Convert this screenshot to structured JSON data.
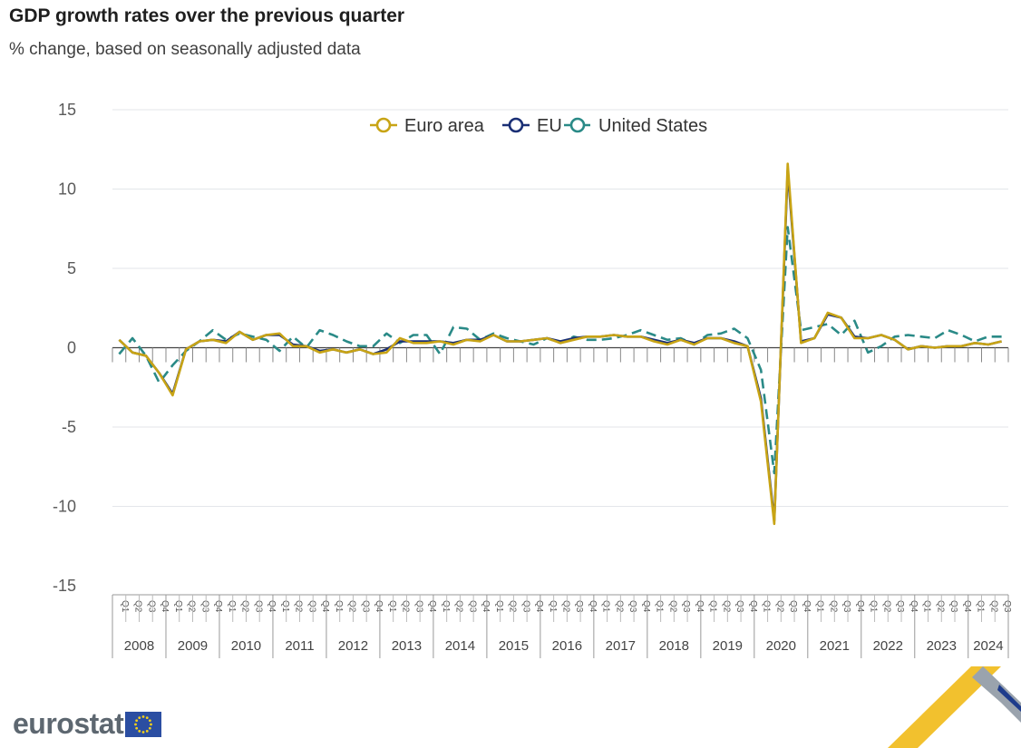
{
  "chart_data": {
    "type": "line",
    "title": "GDP growth rates over the previous quarter",
    "subtitle": "% change, based on seasonally adjusted data",
    "xlabel": "",
    "ylabel": "",
    "ylim": [
      -15,
      15
    ],
    "yticks": [
      15,
      10,
      5,
      0,
      -5,
      -10,
      -15
    ],
    "grid": true,
    "legend_position": "top-center",
    "quarter_labels": [
      "Q1",
      "Q2",
      "Q3",
      "Q4"
    ],
    "years": [
      "2008",
      "2009",
      "2010",
      "2011",
      "2012",
      "2013",
      "2014",
      "2015",
      "2016",
      "2017",
      "2018",
      "2019",
      "2020",
      "2021",
      "2022",
      "2023",
      "2024"
    ],
    "quarters_per_year": [
      4,
      4,
      4,
      4,
      4,
      4,
      4,
      4,
      4,
      4,
      4,
      4,
      4,
      4,
      4,
      4,
      3
    ],
    "series": [
      {
        "name": "Euro area",
        "color": "#c8a415",
        "dash": "solid",
        "values": [
          0.5,
          -0.3,
          -0.5,
          -1.6,
          -3.0,
          -0.1,
          0.4,
          0.5,
          0.3,
          1.0,
          0.5,
          0.8,
          0.9,
          0.1,
          0.1,
          -0.3,
          -0.1,
          -0.3,
          -0.1,
          -0.4,
          -0.3,
          0.6,
          0.3,
          0.3,
          0.4,
          0.2,
          0.5,
          0.4,
          0.8,
          0.4,
          0.4,
          0.5,
          0.6,
          0.3,
          0.5,
          0.7,
          0.7,
          0.8,
          0.7,
          0.7,
          0.4,
          0.2,
          0.5,
          0.2,
          0.6,
          0.6,
          0.3,
          0.1,
          -3.4,
          -11.1,
          11.6,
          0.3,
          0.6,
          2.2,
          1.9,
          0.6,
          0.6,
          0.8,
          0.5,
          -0.1,
          0.1,
          0.0,
          0.1,
          0.1,
          0.3,
          0.2,
          0.4
        ]
      },
      {
        "name": "EU",
        "color": "#1a2f75",
        "dash": "solid",
        "values": [
          0.5,
          -0.3,
          -0.5,
          -1.6,
          -2.9,
          -0.1,
          0.4,
          0.5,
          0.4,
          1.0,
          0.5,
          0.8,
          0.8,
          0.2,
          0.1,
          -0.2,
          -0.1,
          -0.3,
          -0.1,
          -0.4,
          -0.1,
          0.4,
          0.4,
          0.4,
          0.4,
          0.3,
          0.5,
          0.5,
          0.8,
          0.4,
          0.4,
          0.5,
          0.6,
          0.4,
          0.6,
          0.7,
          0.7,
          0.8,
          0.7,
          0.7,
          0.5,
          0.3,
          0.5,
          0.3,
          0.6,
          0.6,
          0.4,
          0.1,
          -3.2,
          -10.9,
          11.2,
          0.4,
          0.6,
          2.1,
          1.9,
          0.7,
          0.6,
          0.8,
          0.5,
          -0.1,
          0.1,
          0.0,
          0.1,
          0.1,
          0.3,
          0.2,
          0.4
        ]
      },
      {
        "name": "United States",
        "color": "#2a8a87",
        "dash": "dashed",
        "values": [
          -0.4,
          0.6,
          -0.5,
          -2.2,
          -1.1,
          -0.2,
          0.4,
          1.1,
          0.5,
          0.9,
          0.7,
          0.5,
          -0.2,
          0.7,
          0.0,
          1.1,
          0.8,
          0.4,
          0.1,
          0.1,
          0.9,
          0.3,
          0.8,
          0.8,
          -0.4,
          1.3,
          1.2,
          0.5,
          0.9,
          0.6,
          0.4,
          0.2,
          0.6,
          0.3,
          0.7,
          0.5,
          0.5,
          0.6,
          0.8,
          1.1,
          0.8,
          0.5,
          0.6,
          0.2,
          0.8,
          0.9,
          1.2,
          0.6,
          -1.4,
          -7.9,
          7.6,
          1.1,
          1.3,
          1.5,
          0.8,
          1.7,
          -0.3,
          0.1,
          0.7,
          0.8,
          0.7,
          0.6,
          1.1,
          0.8,
          0.4,
          0.7,
          0.7
        ]
      }
    ]
  },
  "branding": {
    "logo_text": "eurostat"
  }
}
